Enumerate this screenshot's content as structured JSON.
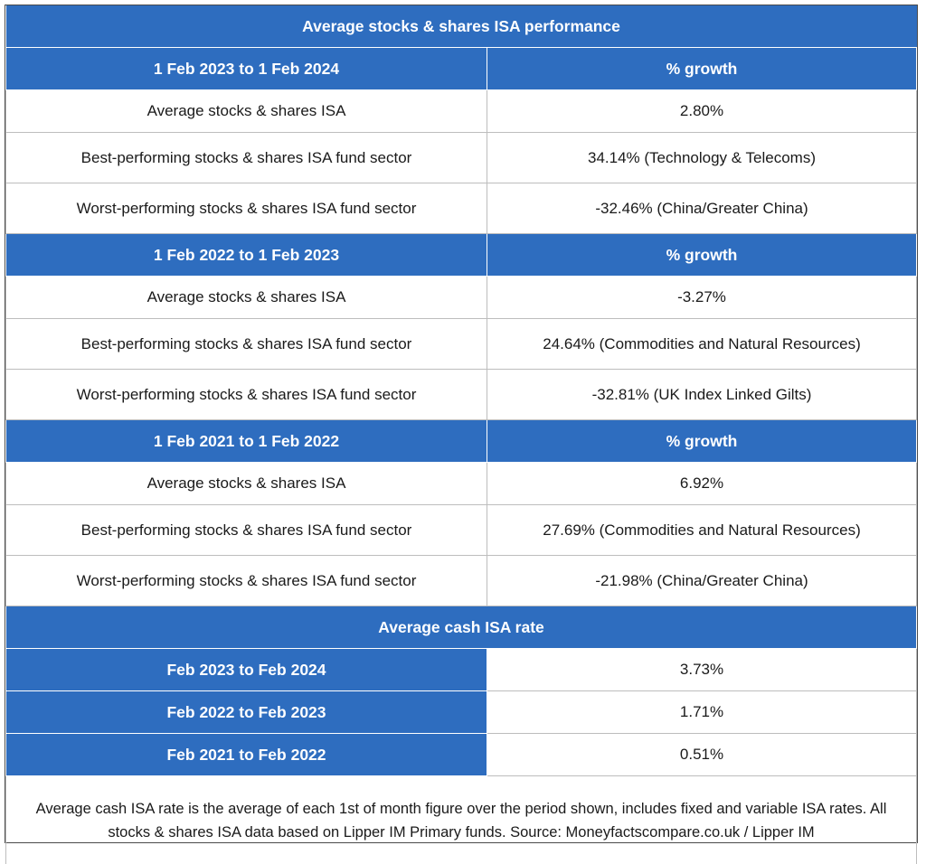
{
  "title": "Average stocks & shares ISA performance",
  "periods": [
    {
      "header": "1 Feb 2023 to 1 Feb 2024",
      "header_value": "% growth",
      "rows": [
        {
          "label": "Average stocks & shares ISA",
          "value": "2.80%"
        },
        {
          "label": "Best-performing stocks & shares ISA fund sector",
          "value": "34.14% (Technology & Telecoms)"
        },
        {
          "label": "Worst-performing stocks & shares ISA fund sector",
          "value": "-32.46% (China/Greater China)"
        }
      ]
    },
    {
      "header": "1 Feb 2022 to 1 Feb 2023",
      "header_value": "% growth",
      "rows": [
        {
          "label": "Average stocks & shares ISA",
          "value": "-3.27%"
        },
        {
          "label": "Best-performing stocks & shares ISA fund sector",
          "value": "24.64% (Commodities and Natural Resources)"
        },
        {
          "label": "Worst-performing stocks & shares ISA fund sector",
          "value": "-32.81% (UK Index Linked Gilts)"
        }
      ]
    },
    {
      "header": "1 Feb 2021 to 1 Feb 2022",
      "header_value": "% growth",
      "rows": [
        {
          "label": "Average stocks & shares ISA",
          "value": "6.92%"
        },
        {
          "label": "Best-performing stocks & shares ISA fund sector",
          "value": "27.69% (Commodities and Natural Resources)"
        },
        {
          "label": "Worst-performing stocks & shares ISA fund sector",
          "value": "-21.98% (China/Greater China)"
        }
      ]
    }
  ],
  "cash": {
    "title": "Average cash ISA rate",
    "rows": [
      {
        "label": "Feb 2023 to Feb 2024",
        "value": "3.73%"
      },
      {
        "label": "Feb 2022 to Feb 2023",
        "value": "1.71%"
      },
      {
        "label": "Feb 2021 to Feb 2022",
        "value": "0.51%"
      }
    ]
  },
  "note": "Average cash ISA rate is the average of each 1st of month figure over the period shown, includes fixed and variable ISA rates. All stocks & shares ISA data based on Lipper IM Primary funds. Source: Moneyfactscompare.co.uk / Lipper IM",
  "colors": {
    "header_blue": "#2e6dbf",
    "border": "#bdbdbd"
  }
}
